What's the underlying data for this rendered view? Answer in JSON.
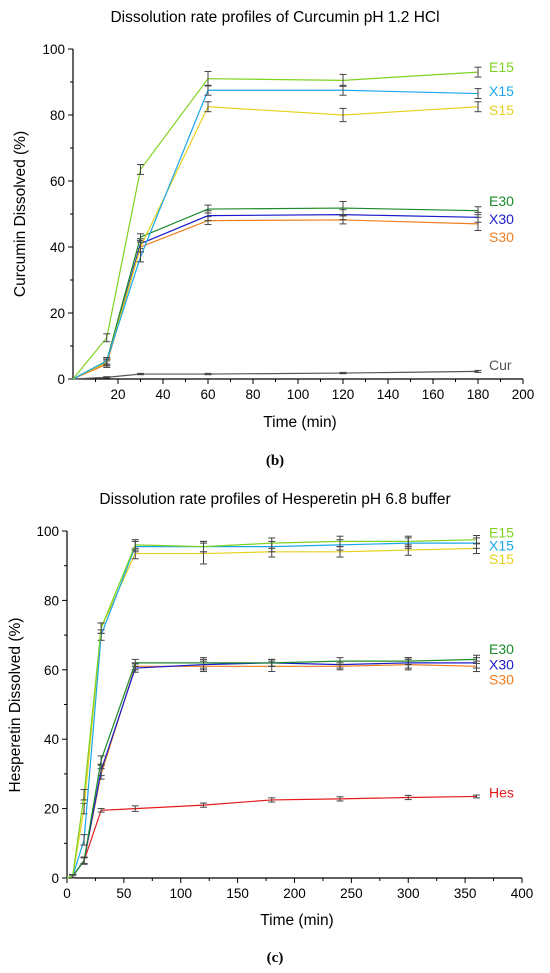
{
  "chart_data": [
    {
      "type": "line",
      "title": "Dissolution rate profiles of Curcumin pH 1.2 HCl",
      "xlabel": "Time (min)",
      "ylabel": "Curcumin Dissolved (%)",
      "caption": "(b)",
      "xlim": [
        0,
        200
      ],
      "ylim": [
        0,
        100
      ],
      "xticks": [
        20,
        40,
        60,
        80,
        100,
        120,
        140,
        160,
        180,
        200
      ],
      "yticks": [
        0,
        20,
        40,
        60,
        80,
        100
      ],
      "grid": false,
      "legend": "series labels at right end of lines",
      "series": [
        {
          "name": "E15",
          "color": "#7ed321",
          "x": [
            0,
            15,
            30,
            60,
            120,
            180
          ],
          "y": [
            0,
            12.5,
            63.5,
            91,
            90.5,
            93
          ],
          "err": [
            0,
            1.2,
            1.5,
            2.2,
            1.8,
            1.5
          ]
        },
        {
          "name": "X15",
          "color": "#1aa7e8",
          "x": [
            0,
            15,
            30,
            60,
            120,
            180
          ],
          "y": [
            0,
            5.5,
            37,
            87.5,
            87.5,
            86.5
          ],
          "err": [
            0,
            1,
            1.5,
            1.5,
            1.5,
            1.5
          ]
        },
        {
          "name": "S15",
          "color": "#e6d21e",
          "x": [
            0,
            15,
            30,
            60,
            120,
            180
          ],
          "y": [
            0,
            5,
            40,
            82.5,
            80,
            82.5
          ],
          "err": [
            0,
            1,
            1.5,
            1.5,
            2,
            1.5
          ]
        },
        {
          "name": "E30",
          "color": "#1a8a2a",
          "x": [
            0,
            15,
            30,
            60,
            120,
            180
          ],
          "y": [
            0,
            5.5,
            43,
            51.5,
            51.8,
            51
          ],
          "err": [
            0,
            1,
            1,
            1.2,
            2,
            1.2
          ]
        },
        {
          "name": "X30",
          "color": "#1a1acc",
          "x": [
            0,
            15,
            30,
            60,
            120,
            180
          ],
          "y": [
            0,
            5,
            41,
            49.5,
            49.8,
            49
          ],
          "err": [
            0,
            1,
            1.5,
            1.5,
            1.5,
            1.5
          ]
        },
        {
          "name": "S30",
          "color": "#f07d1e",
          "x": [
            0,
            15,
            30,
            60,
            120,
            180
          ],
          "y": [
            0,
            4.5,
            40,
            48,
            48.2,
            47
          ],
          "err": [
            0,
            1,
            1.5,
            1.2,
            1.2,
            2
          ]
        },
        {
          "name": "Cur",
          "color": "#555555",
          "x": [
            0,
            15,
            30,
            60,
            120,
            180
          ],
          "y": [
            0,
            0.5,
            1.5,
            1.5,
            1.8,
            2.3
          ],
          "err": [
            0,
            0.2,
            0.2,
            0.2,
            0.2,
            0.3
          ]
        }
      ]
    },
    {
      "type": "line",
      "title": "Dissolution rate profiles of Hesperetin pH 6.8 buffer",
      "xlabel": "Time (min)",
      "ylabel": "Hesperetin Dissolved (%)",
      "caption": "(c)",
      "xlim": [
        0,
        400
      ],
      "ylim": [
        0,
        100
      ],
      "xticks": [
        0,
        50,
        100,
        150,
        200,
        250,
        300,
        350,
        400
      ],
      "yticks": [
        0,
        20,
        40,
        60,
        80,
        100
      ],
      "grid": false,
      "legend": "series labels at right end of lines",
      "series": [
        {
          "name": "E15",
          "color": "#7ed321",
          "x": [
            0,
            5,
            15,
            30,
            60,
            120,
            180,
            240,
            300,
            360
          ],
          "y": [
            0,
            0.5,
            24,
            72,
            96,
            95.5,
            96.5,
            97,
            97,
            97.5
          ],
          "err": [
            0,
            0.5,
            1.5,
            1.5,
            1.5,
            1.5,
            1.5,
            1.5,
            1.5,
            1.2
          ]
        },
        {
          "name": "X15",
          "color": "#1aa7e8",
          "x": [
            0,
            5,
            15,
            30,
            60,
            120,
            180,
            240,
            300,
            360
          ],
          "y": [
            0,
            0.5,
            11,
            70,
            95.5,
            95.5,
            95.5,
            96,
            96.5,
            96.5
          ],
          "err": [
            0,
            0.5,
            1.5,
            1.5,
            1.5,
            1.5,
            1.5,
            1.5,
            1.5,
            1.5
          ]
        },
        {
          "name": "S15",
          "color": "#e6d21e",
          "x": [
            0,
            5,
            15,
            30,
            60,
            120,
            180,
            240,
            300,
            360
          ],
          "y": [
            0,
            0.5,
            20,
            72,
            93.5,
            93.5,
            94,
            94,
            94.5,
            95
          ],
          "err": [
            0,
            0.5,
            1.5,
            1.5,
            1.5,
            3,
            1.5,
            1.5,
            1.5,
            1.5
          ]
        },
        {
          "name": "E30",
          "color": "#1a8a2a",
          "x": [
            0,
            5,
            15,
            30,
            60,
            120,
            180,
            240,
            300,
            360
          ],
          "y": [
            0,
            0.5,
            5,
            34,
            62,
            62,
            62,
            62.5,
            62.5,
            63
          ],
          "err": [
            0,
            0.5,
            1,
            1.2,
            1,
            1.5,
            1,
            1,
            1,
            1.2
          ]
        },
        {
          "name": "X30",
          "color": "#1a1acc",
          "x": [
            0,
            5,
            15,
            30,
            60,
            120,
            180,
            240,
            300,
            360
          ],
          "y": [
            0,
            0.5,
            5,
            31,
            60.5,
            61.5,
            62,
            61.5,
            62,
            62
          ],
          "err": [
            0,
            0.5,
            1,
            1.5,
            1.2,
            1.5,
            1,
            1,
            1.5,
            1.5
          ]
        },
        {
          "name": "S30",
          "color": "#f07d1e",
          "x": [
            0,
            5,
            15,
            30,
            60,
            120,
            180,
            240,
            300,
            360
          ],
          "y": [
            0,
            0.5,
            5,
            30,
            61,
            61,
            61,
            61,
            61.5,
            61
          ],
          "err": [
            0,
            0.5,
            1,
            1.5,
            1,
            1.5,
            1.5,
            1,
            1.5,
            1.5
          ]
        },
        {
          "name": "Hes",
          "color": "#e41a1c",
          "x": [
            0,
            5,
            15,
            30,
            60,
            120,
            180,
            240,
            300,
            360
          ],
          "y": [
            0,
            0.5,
            5,
            19.5,
            20,
            21,
            22.5,
            22.8,
            23.2,
            23.5
          ],
          "err": [
            0,
            0.3,
            0.8,
            0.5,
            0.8,
            0.6,
            0.6,
            0.6,
            0.6,
            0.4
          ]
        }
      ]
    }
  ]
}
